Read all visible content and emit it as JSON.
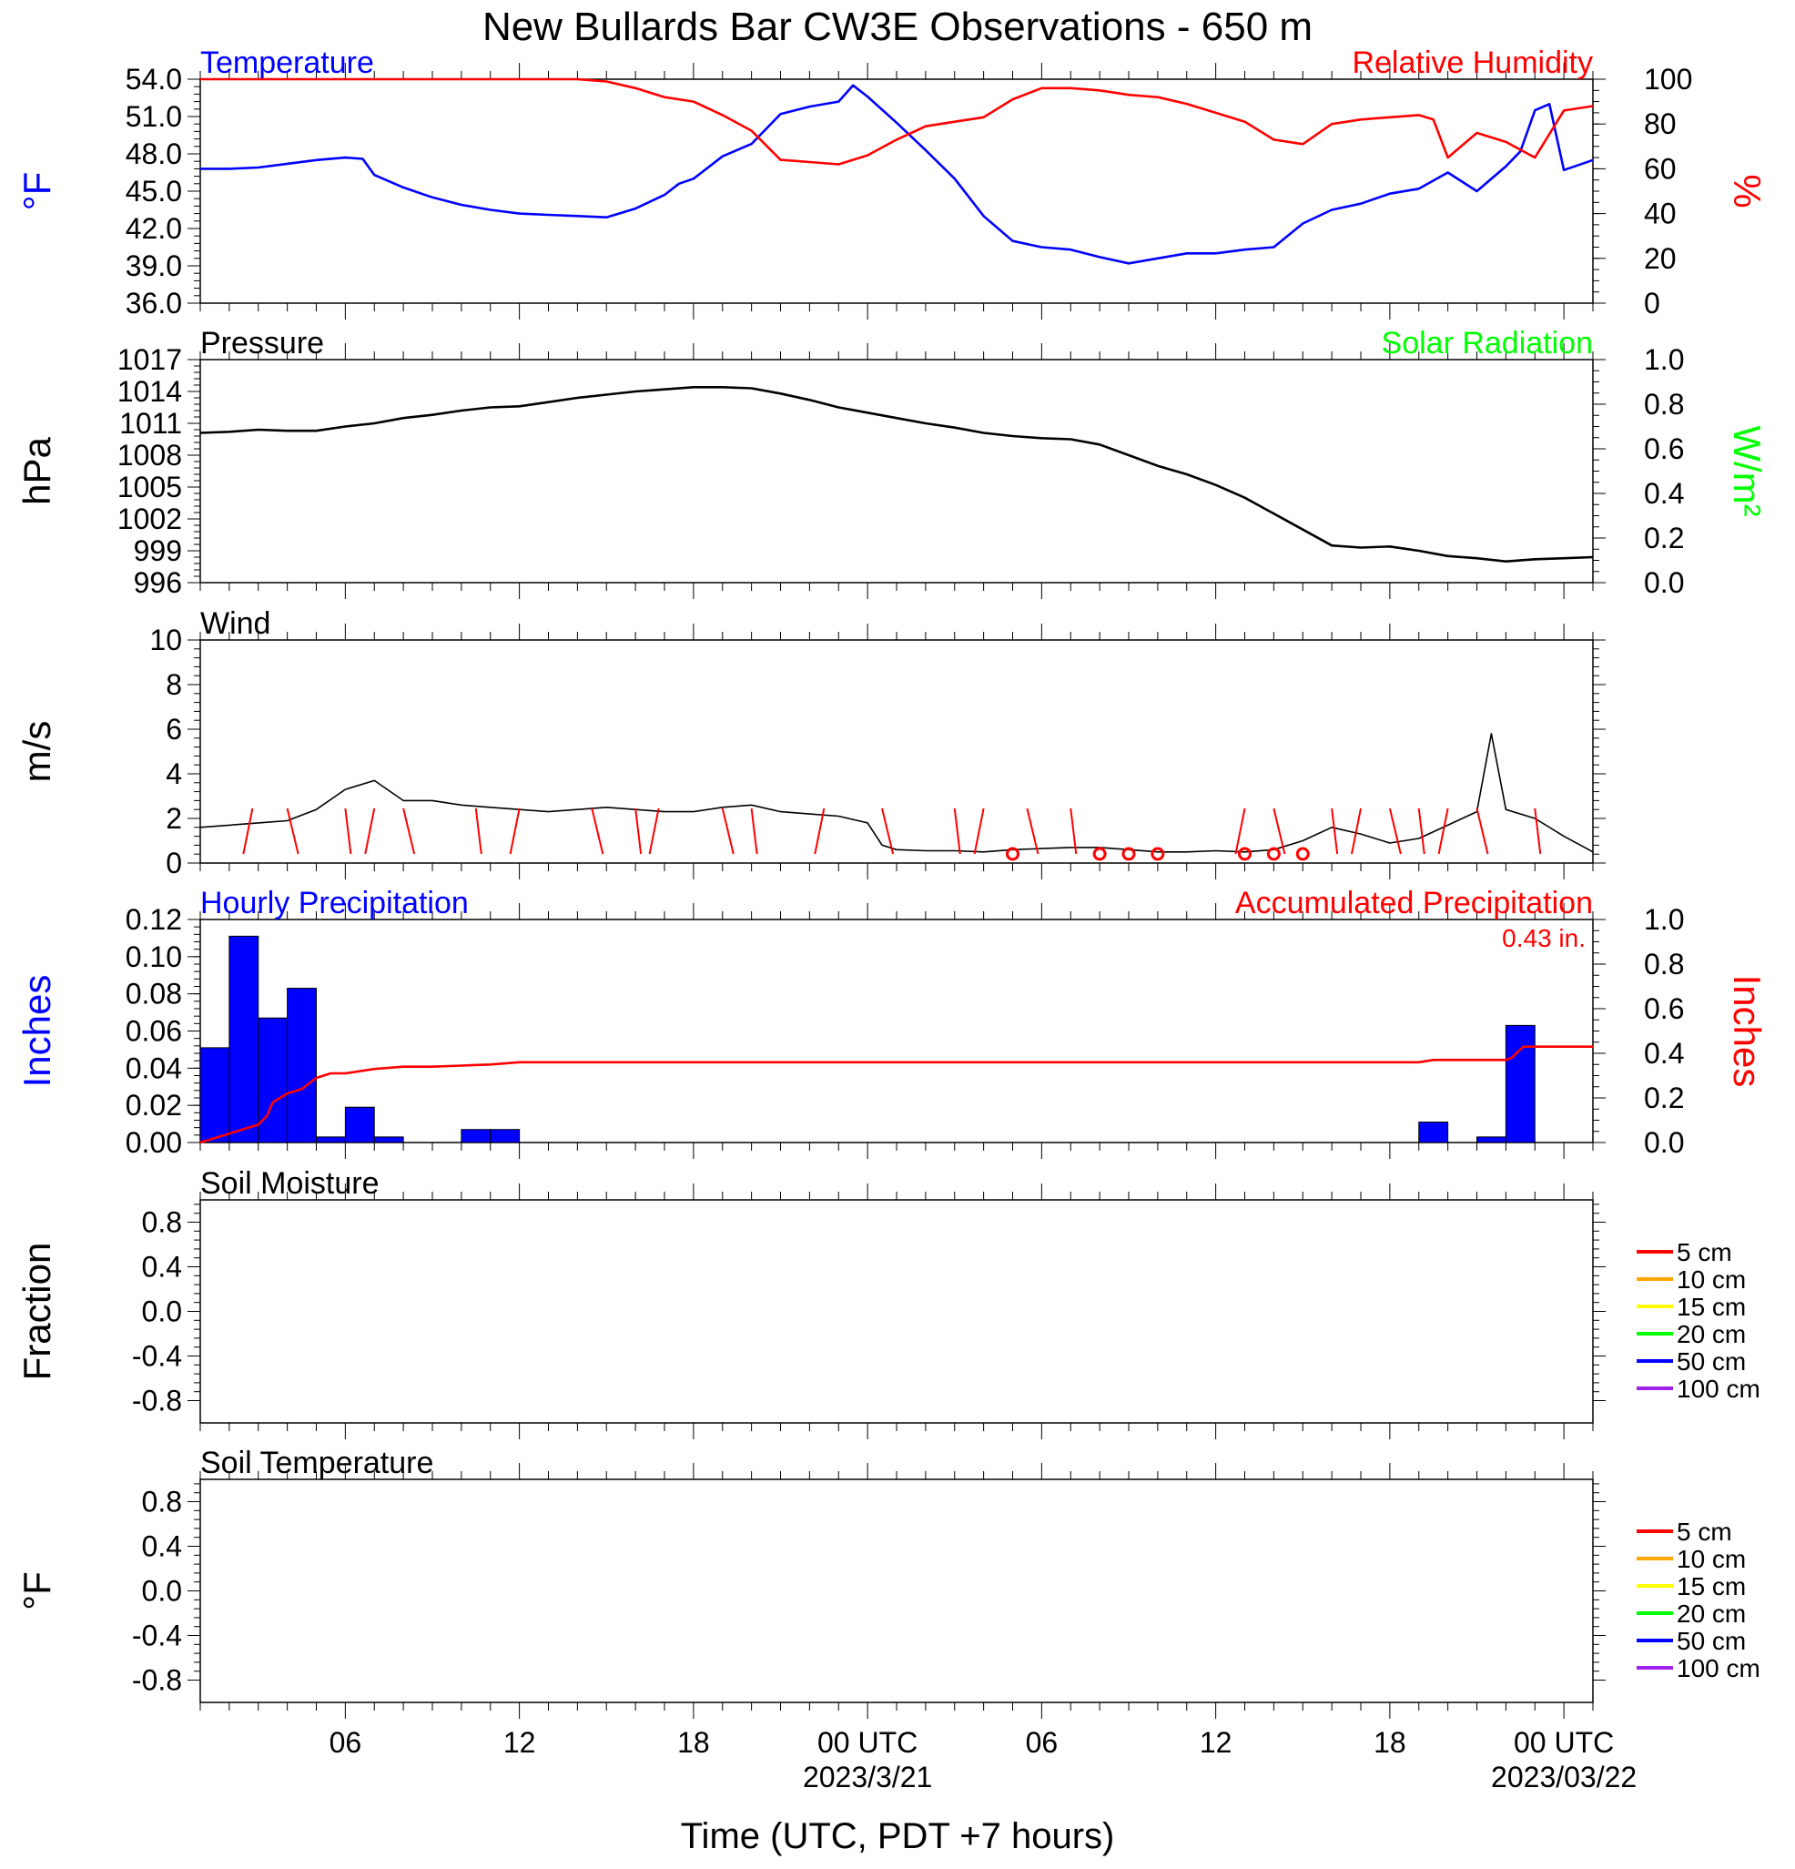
{
  "title": "New Bullards Bar CW3E Observations - 650 m",
  "xaxis": {
    "title": "Time (UTC, PDT +7 hours)",
    "tick_labels": [
      "06",
      "12",
      "18",
      "00 UTC",
      "06",
      "12",
      "18",
      "00 UTC"
    ],
    "tick_hours": [
      6,
      12,
      18,
      24,
      30,
      36,
      42,
      48
    ],
    "date_labels": [
      "2023/3/21",
      "2023/03/22"
    ],
    "date_hours": [
      24,
      48
    ],
    "range_hours": [
      1,
      49
    ]
  },
  "colors": {
    "blue": "#0000ff",
    "red": "#ff0000",
    "green": "#00ff00",
    "black": "#000000"
  },
  "chart_data": [
    {
      "type": "line",
      "panel": "temperature-rh",
      "left_title": "Temperature",
      "right_title": "Relative Humidity",
      "ylabel_left": "°F",
      "ylabel_right": "%",
      "ylim_left": [
        36,
        54
      ],
      "yticks_left": [
        "54.0",
        "51.0",
        "48.0",
        "45.0",
        "42.0",
        "39.0",
        "36.0"
      ],
      "ylim_right": [
        0,
        100
      ],
      "yticks_right": [
        "100",
        "80",
        "60",
        "40",
        "20",
        "0"
      ],
      "series": [
        {
          "name": "Temperature",
          "color": "#0000ff",
          "axis": "left",
          "x": [
            1,
            2,
            3,
            4,
            5,
            6,
            6.6,
            7,
            8,
            9,
            10,
            11,
            12,
            13,
            14,
            15,
            16,
            17,
            17.5,
            18,
            19,
            20,
            21,
            22,
            23,
            23.5,
            24,
            25,
            26,
            27,
            28,
            29,
            30,
            31,
            32,
            33,
            34,
            35,
            36,
            37,
            38,
            39,
            40,
            41,
            42,
            43,
            44,
            45,
            46,
            46.5,
            47,
            47.5,
            48,
            49
          ],
          "y": [
            46.8,
            46.8,
            46.9,
            47.2,
            47.5,
            47.7,
            47.6,
            46.3,
            45.3,
            44.5,
            43.9,
            43.5,
            43.2,
            43.1,
            43.0,
            42.9,
            43.6,
            44.7,
            45.6,
            46.0,
            47.8,
            48.8,
            51.2,
            51.8,
            52.2,
            53.5,
            52.6,
            50.5,
            48.3,
            46.0,
            43.0,
            41.0,
            40.5,
            40.3,
            39.7,
            39.2,
            39.6,
            40.0,
            40.0,
            40.3,
            40.5,
            42.4,
            43.5,
            44.0,
            44.8,
            45.2,
            46.5,
            45.0,
            47.0,
            48.2,
            51.5,
            52.0,
            46.7,
            47.5
          ]
        },
        {
          "name": "Relative Humidity",
          "color": "#ff0000",
          "axis": "right",
          "x": [
            1,
            2,
            4,
            6,
            8,
            10,
            12,
            14,
            15,
            16,
            17,
            18,
            19,
            20,
            21,
            22,
            23,
            24,
            25,
            26,
            27,
            28,
            29,
            30,
            31,
            32,
            33,
            34,
            35,
            36,
            37,
            38,
            39,
            40,
            41,
            42,
            43,
            43.5,
            44,
            45,
            46,
            47,
            48,
            49
          ],
          "y": [
            100,
            100,
            100,
            100,
            100,
            100,
            100,
            100,
            99,
            96,
            92,
            90,
            84,
            77,
            64,
            63,
            62,
            66,
            73,
            79,
            81,
            83,
            91,
            96,
            96,
            95,
            93,
            92,
            89,
            85,
            81,
            73,
            71,
            80,
            82,
            83,
            84,
            82,
            65,
            76,
            72,
            65,
            86,
            88
          ]
        }
      ]
    },
    {
      "type": "line",
      "panel": "pressure-solar",
      "left_title": "Pressure",
      "right_title": "Solar Radiation",
      "ylabel_left": "hPa",
      "ylabel_right": "W/m²",
      "ylim_left": [
        996,
        1017
      ],
      "yticks_left": [
        "1017",
        "1014",
        "1011",
        "1008",
        "1005",
        "1002",
        "999",
        "996"
      ],
      "ylim_right": [
        0,
        1
      ],
      "yticks_right": [
        "1.0",
        "0.8",
        "0.6",
        "0.4",
        "0.2",
        "0.0"
      ],
      "series": [
        {
          "name": "Pressure",
          "color": "#000000",
          "axis": "left",
          "x": [
            1,
            2,
            3,
            4,
            5,
            6,
            7,
            8,
            9,
            10,
            11,
            12,
            13,
            14,
            15,
            16,
            17,
            18,
            19,
            20,
            21,
            22,
            23,
            24,
            25,
            26,
            27,
            28,
            29,
            30,
            31,
            32,
            33,
            34,
            35,
            36,
            37,
            38,
            39,
            40,
            41,
            42,
            43,
            44,
            45,
            46,
            47,
            48,
            49
          ],
          "y": [
            1010.1,
            1010.2,
            1010.4,
            1010.3,
            1010.3,
            1010.7,
            1011.0,
            1011.5,
            1011.8,
            1012.2,
            1012.5,
            1012.6,
            1013.0,
            1013.4,
            1013.7,
            1014.0,
            1014.2,
            1014.4,
            1014.4,
            1014.3,
            1013.8,
            1013.2,
            1012.5,
            1012.0,
            1011.5,
            1011.0,
            1010.6,
            1010.1,
            1009.8,
            1009.6,
            1009.5,
            1009.0,
            1008.0,
            1007.0,
            1006.2,
            1005.2,
            1004.0,
            1002.5,
            1001.0,
            999.5,
            999.3,
            999.4,
            999.0,
            998.5,
            998.3,
            998.0,
            998.2,
            998.3,
            998.4
          ]
        }
      ]
    },
    {
      "type": "line",
      "panel": "wind",
      "left_title": "Wind",
      "ylabel_left": "m/s",
      "ylim_left": [
        0,
        10
      ],
      "yticks_left": [
        "10",
        "8",
        "6",
        "4",
        "2",
        "0"
      ],
      "series": [
        {
          "name": "Wind speed",
          "color": "#000000",
          "axis": "left",
          "x": [
            1,
            2,
            3,
            4,
            5,
            6,
            7,
            8,
            9,
            10,
            11,
            12,
            13,
            14,
            15,
            16,
            17,
            18,
            19,
            20,
            21,
            22,
            23,
            24,
            24.5,
            25,
            26,
            27,
            28,
            29,
            30,
            31,
            32,
            33,
            34,
            35,
            36,
            37,
            38,
            39,
            40,
            41,
            42,
            43,
            44,
            45,
            45.5,
            46,
            47,
            48,
            49
          ],
          "y": [
            1.6,
            1.7,
            1.8,
            1.9,
            2.4,
            3.3,
            3.7,
            2.8,
            2.8,
            2.6,
            2.5,
            2.4,
            2.3,
            2.4,
            2.5,
            2.4,
            2.3,
            2.3,
            2.5,
            2.6,
            2.3,
            2.2,
            2.1,
            1.8,
            0.8,
            0.6,
            0.55,
            0.55,
            0.5,
            0.6,
            0.65,
            0.7,
            0.7,
            0.6,
            0.5,
            0.5,
            0.55,
            0.5,
            0.6,
            1.0,
            1.6,
            1.3,
            0.9,
            1.1,
            1.7,
            2.3,
            5.8,
            2.4,
            2.0,
            1.2,
            0.5
          ]
        }
      ],
      "barbs": [
        2.8,
        4.0,
        6.0,
        7.0,
        8.0,
        10.5,
        12.0,
        14.5,
        16.0,
        16.8,
        19.0,
        20.0,
        22.5,
        24.5,
        27.0,
        28.0,
        29.5,
        31.0,
        37.0,
        38.0,
        40.0,
        41.0,
        42.0,
        43.0,
        44.0,
        45.0,
        47.0
      ],
      "calm_markers": [
        29.0,
        32.0,
        33.0,
        34.0,
        37.0,
        38.0,
        39.0
      ]
    },
    {
      "type": "bar",
      "panel": "precipitation",
      "left_title": "Hourly Precipitation",
      "right_title": "Accumulated Precipitation",
      "annotation": "0.43 in.",
      "ylabel_left": "Inches",
      "ylabel_right": "Inches",
      "ylim_left": [
        0,
        0.12
      ],
      "yticks_left": [
        "0.12",
        "0.10",
        "0.08",
        "0.06",
        "0.04",
        "0.02",
        "0.00"
      ],
      "ylim_right": [
        0,
        1
      ],
      "yticks_right": [
        "1.0",
        "0.8",
        "0.6",
        "0.4",
        "0.2",
        "0.0"
      ],
      "bars": {
        "color": "#0000ff",
        "hour_start": [
          1,
          2,
          3,
          4,
          5,
          6,
          7,
          8,
          10,
          11,
          43,
          45,
          46
        ],
        "values": [
          0.051,
          0.111,
          0.067,
          0.083,
          0.003,
          0.019,
          0.003,
          0.0,
          0.007,
          0.007,
          0.011,
          0.003,
          0.063
        ]
      },
      "series": [
        {
          "name": "Accumulated Precipitation",
          "color": "#ff0000",
          "axis": "right",
          "x": [
            1,
            1.5,
            2,
            2.5,
            3,
            3.3,
            3.5,
            4,
            4.5,
            5,
            5.5,
            6,
            7,
            8,
            9,
            10,
            11,
            12,
            14,
            20,
            30,
            40,
            43,
            43.5,
            45,
            46,
            46.2,
            46.6,
            47,
            49
          ],
          "y": [
            0.0,
            0.02,
            0.04,
            0.06,
            0.08,
            0.12,
            0.18,
            0.22,
            0.24,
            0.29,
            0.31,
            0.31,
            0.33,
            0.34,
            0.34,
            0.345,
            0.35,
            0.36,
            0.36,
            0.36,
            0.36,
            0.36,
            0.36,
            0.37,
            0.37,
            0.37,
            0.38,
            0.43,
            0.43,
            0.43
          ]
        }
      ]
    },
    {
      "type": "line",
      "panel": "soil-moisture",
      "left_title": "Soil Moisture",
      "ylabel_left": "Fraction",
      "ylim_left": [
        -1,
        1
      ],
      "yticks_left": [
        "0.8",
        "0.4",
        "0.0",
        "-0.4",
        "-0.8"
      ],
      "legend": [
        {
          "name": "5 cm",
          "color": "#ff0000"
        },
        {
          "name": "10 cm",
          "color": "#ffa500"
        },
        {
          "name": "15 cm",
          "color": "#ffff00"
        },
        {
          "name": "20 cm",
          "color": "#00ff00"
        },
        {
          "name": "50 cm",
          "color": "#0000ff"
        },
        {
          "name": "100 cm",
          "color": "#a020f0"
        }
      ],
      "series": []
    },
    {
      "type": "line",
      "panel": "soil-temperature",
      "left_title": "Soil Temperature",
      "ylabel_left": "°F",
      "ylim_left": [
        -1,
        1
      ],
      "yticks_left": [
        "0.8",
        "0.4",
        "0.0",
        "-0.4",
        "-0.8"
      ],
      "legend": [
        {
          "name": "5 cm",
          "color": "#ff0000"
        },
        {
          "name": "10 cm",
          "color": "#ffa500"
        },
        {
          "name": "15 cm",
          "color": "#ffff00"
        },
        {
          "name": "20 cm",
          "color": "#00ff00"
        },
        {
          "name": "50 cm",
          "color": "#0000ff"
        },
        {
          "name": "100 cm",
          "color": "#a020f0"
        }
      ],
      "series": []
    }
  ]
}
